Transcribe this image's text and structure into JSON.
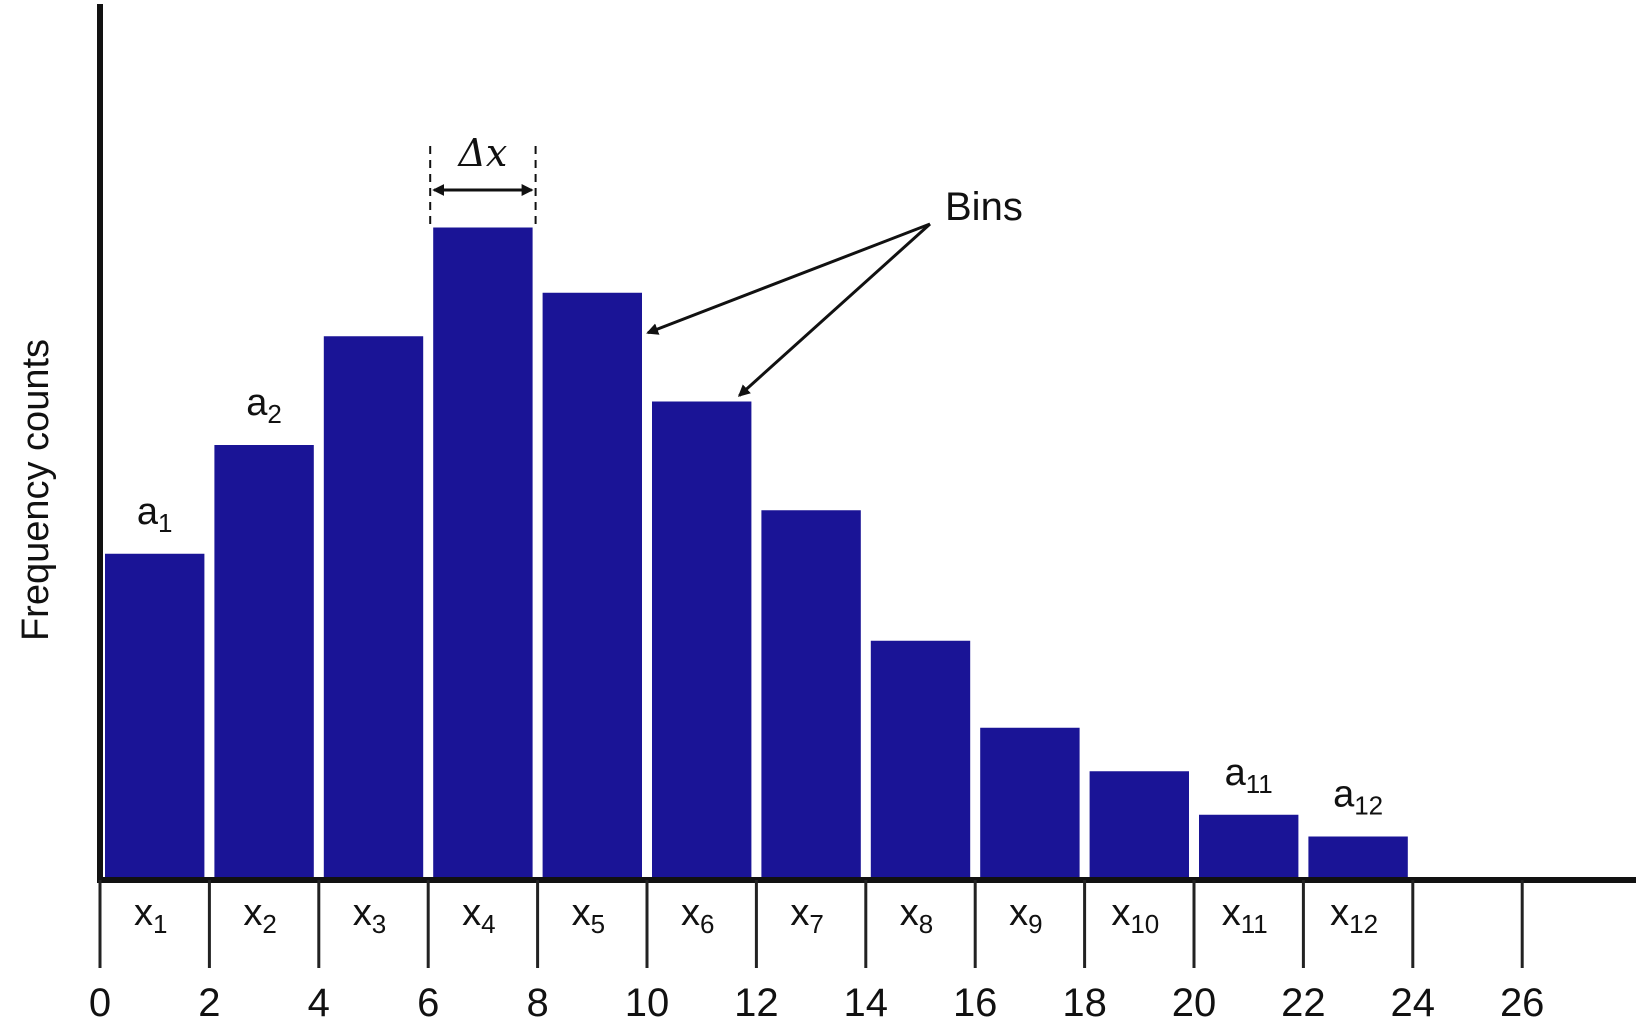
{
  "chart_data": {
    "type": "bar",
    "ylabel": "Frequency counts",
    "xlabel": "",
    "x_ticks": [
      "0",
      "2",
      "4",
      "6",
      "8",
      "10",
      "12",
      "14",
      "16",
      "18",
      "20",
      "22",
      "24",
      "26"
    ],
    "bin_width": 2,
    "bar_color": "#1a1496",
    "bins": [
      {
        "x_start": 0,
        "x_end": 2,
        "label": "x",
        "sub": "1",
        "value": 7.5,
        "annotation": {
          "text": "a",
          "sub": "1"
        }
      },
      {
        "x_start": 2,
        "x_end": 4,
        "label": "x",
        "sub": "2",
        "value": 10.0,
        "annotation": {
          "text": "a",
          "sub": "2"
        }
      },
      {
        "x_start": 4,
        "x_end": 6,
        "label": "x",
        "sub": "3",
        "value": 12.5,
        "annotation": null
      },
      {
        "x_start": 6,
        "x_end": 8,
        "label": "x",
        "sub": "4",
        "value": 15.0,
        "annotation": null
      },
      {
        "x_start": 8,
        "x_end": 10,
        "label": "x",
        "sub": "5",
        "value": 13.5,
        "annotation": null
      },
      {
        "x_start": 10,
        "x_end": 12,
        "label": "x",
        "sub": "6",
        "value": 11.0,
        "annotation": null
      },
      {
        "x_start": 12,
        "x_end": 14,
        "label": "x",
        "sub": "7",
        "value": 8.5,
        "annotation": null
      },
      {
        "x_start": 14,
        "x_end": 16,
        "label": "x",
        "sub": "8",
        "value": 5.5,
        "annotation": null
      },
      {
        "x_start": 16,
        "x_end": 18,
        "label": "x",
        "sub": "9",
        "value": 3.5,
        "annotation": null
      },
      {
        "x_start": 18,
        "x_end": 20,
        "label": "x",
        "sub": "10",
        "value": 2.5,
        "annotation": null
      },
      {
        "x_start": 20,
        "x_end": 22,
        "label": "x",
        "sub": "11",
        "value": 1.5,
        "annotation": {
          "text": "a",
          "sub": "11"
        }
      },
      {
        "x_start": 22,
        "x_end": 24,
        "label": "x",
        "sub": "12",
        "value": 1.0,
        "annotation": {
          "text": "a",
          "sub": "12"
        }
      }
    ],
    "xlim": [
      0,
      30
    ],
    "ylim": [
      0,
      20
    ],
    "callouts": {
      "bins_label": "Bins",
      "delta_label": "Δx",
      "delta_bin_index": 3,
      "bins_arrow_targets": [
        4,
        5
      ]
    },
    "grid": false,
    "legend": "none"
  }
}
